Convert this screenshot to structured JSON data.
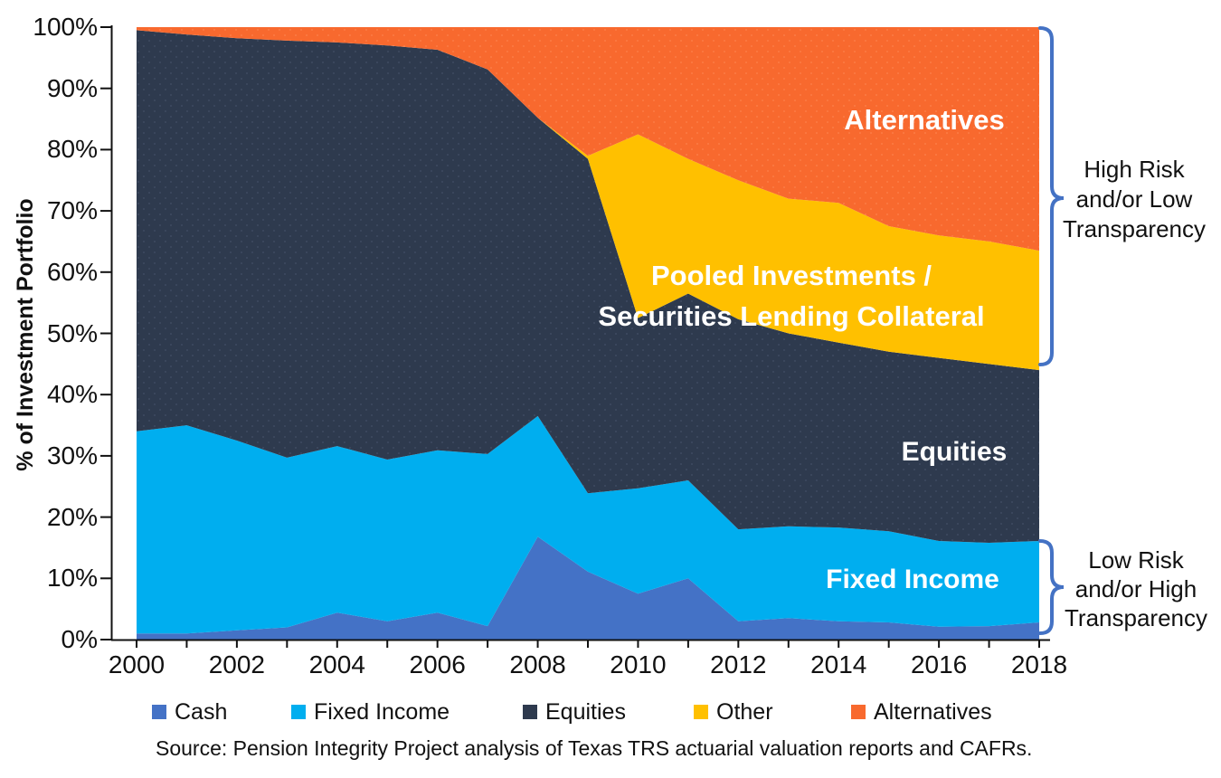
{
  "chart_data": {
    "type": "area",
    "stacked": true,
    "ylabel": "% of Investment Portfolio",
    "ylim": [
      0,
      100
    ],
    "grid": false,
    "legend_position": "bottom",
    "x": [
      2000,
      2001,
      2002,
      2003,
      2004,
      2005,
      2006,
      2007,
      2008,
      2009,
      2010,
      2011,
      2012,
      2013,
      2014,
      2015,
      2016,
      2017,
      2018
    ],
    "x_tick_labels": [
      "2000",
      "2002",
      "2004",
      "2006",
      "2008",
      "2010",
      "2012",
      "2014",
      "2016",
      "2018"
    ],
    "y_tick_labels": [
      "0%",
      "10%",
      "20%",
      "30%",
      "40%",
      "50%",
      "60%",
      "70%",
      "80%",
      "90%",
      "100%"
    ],
    "series": [
      {
        "name": "Cash",
        "color": "#4472C6",
        "texture": "none",
        "values": [
          1.0,
          1.0,
          1.5,
          2.0,
          4.4,
          3.0,
          4.4,
          2.2,
          16.8,
          11.1,
          7.5,
          10.0,
          3.0,
          3.5,
          3.0,
          2.8,
          2.1,
          2.2,
          2.8
        ]
      },
      {
        "name": "Fixed Income",
        "color": "#00AEEF",
        "texture": "none",
        "values": [
          33.0,
          34.0,
          31.0,
          27.7,
          27.2,
          26.4,
          26.5,
          28.1,
          19.7,
          12.8,
          17.2,
          16.0,
          15.0,
          15.0,
          15.3,
          14.9,
          14.0,
          13.6,
          13.3
        ]
      },
      {
        "name": "Equities",
        "color": "#2E3A4E",
        "texture": "dots",
        "dot_color": "#4A586F",
        "values": [
          65.5,
          63.8,
          65.7,
          68.1,
          65.9,
          67.6,
          65.4,
          62.8,
          48.7,
          54.6,
          27.8,
          30.5,
          34.3,
          31.5,
          30.2,
          29.3,
          29.9,
          29.2,
          27.9
        ]
      },
      {
        "name": "Other",
        "color": "#FFC000",
        "texture": "none",
        "values": [
          0,
          0,
          0,
          0,
          0,
          0,
          0,
          0,
          0,
          0.5,
          30.0,
          22.0,
          22.7,
          22.0,
          22.8,
          20.5,
          20.0,
          20.0,
          19.5
        ]
      },
      {
        "name": "Alternatives",
        "color": "#F8692E",
        "texture": "dots",
        "dot_color": "#FF8B55",
        "values": [
          0.5,
          1.2,
          1.8,
          2.2,
          2.5,
          3.0,
          3.7,
          6.9,
          14.8,
          21.0,
          17.5,
          21.5,
          25.0,
          28.0,
          28.7,
          32.5,
          34.0,
          35.0,
          36.5
        ]
      }
    ]
  },
  "annotations": {
    "alternatives": "Alternatives",
    "pooled_line1": "Pooled Investments /",
    "pooled_line2": "Securities Lending Collateral",
    "equities": "Equities",
    "fixed_income": "Fixed Income",
    "high_risk_lines": [
      "High Risk",
      "and/or Low",
      "Transparency"
    ],
    "low_risk_lines": [
      "Low Risk",
      "and/or High",
      "Transparency"
    ],
    "bracket_color": "#4472C4"
  },
  "legend": {
    "items": [
      {
        "label": "Cash",
        "color": "#4472C6"
      },
      {
        "label": "Fixed Income",
        "color": "#00AEEF"
      },
      {
        "label": "Equities",
        "color": "#2E3A4E"
      },
      {
        "label": "Other",
        "color": "#FFC000"
      },
      {
        "label": "Alternatives",
        "color": "#F8692E"
      }
    ]
  },
  "source": "Source: Pension Integrity Project analysis of Texas TRS actuarial valuation reports and CAFRs."
}
